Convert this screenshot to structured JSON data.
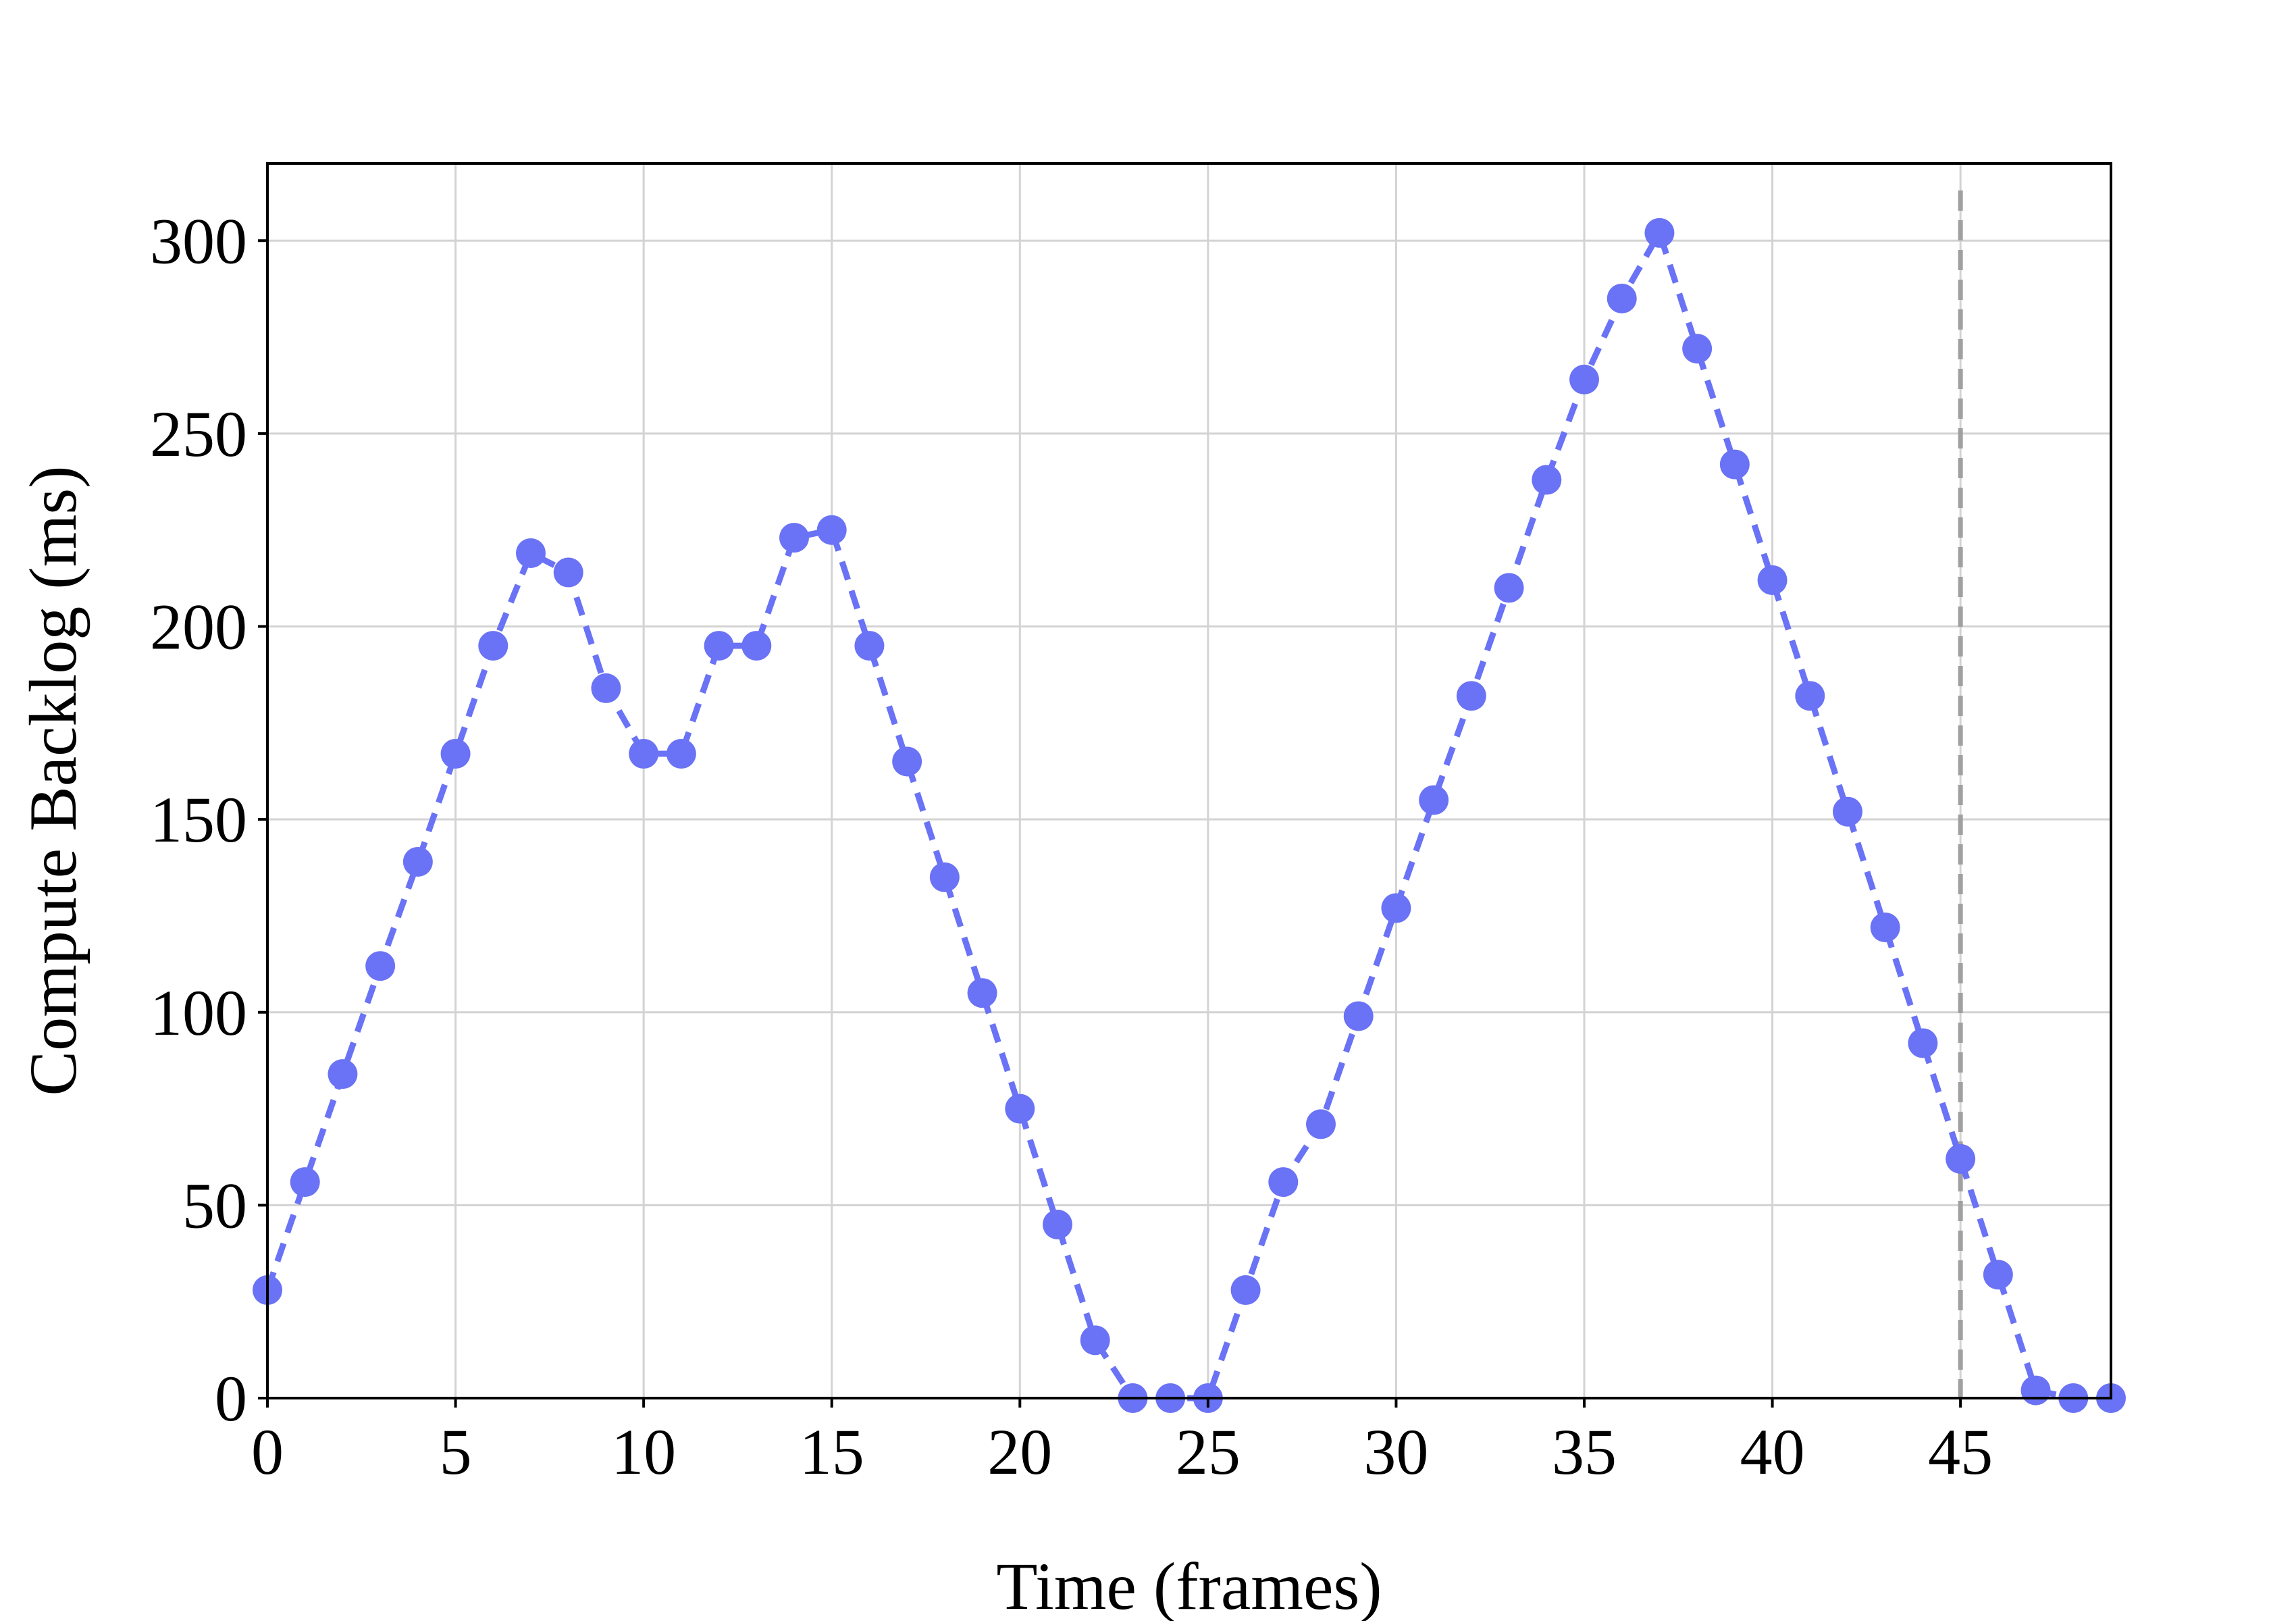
{
  "chart_data": {
    "type": "line",
    "title": "",
    "xlabel": "Time (frames)",
    "ylabel": "Compute Backlog (ms)",
    "xlim": [
      0,
      49
    ],
    "ylim": [
      0,
      320
    ],
    "xticks": [
      0,
      5,
      10,
      15,
      20,
      25,
      30,
      35,
      40,
      45
    ],
    "yticks": [
      0,
      50,
      100,
      150,
      200,
      250,
      300
    ],
    "grid": true,
    "line_style": "dashed",
    "marker": "circle",
    "series": [
      {
        "x": [
          0,
          1,
          2,
          3,
          4,
          5,
          6,
          7,
          8,
          9,
          10,
          11,
          12,
          13,
          14,
          15,
          16,
          17,
          18,
          19,
          20,
          21,
          22,
          23,
          24,
          25,
          26,
          27,
          28,
          29,
          30,
          31,
          32,
          33,
          34,
          35,
          36,
          37,
          38,
          39,
          40,
          41,
          42,
          43,
          44,
          45,
          46,
          47,
          48,
          49
        ],
        "values": [
          28,
          56,
          84,
          112,
          139,
          167,
          195,
          219,
          214,
          184,
          167,
          167,
          195,
          195,
          223,
          225,
          195,
          165,
          135,
          105,
          75,
          45,
          15,
          0,
          0,
          0,
          28,
          56,
          71,
          99,
          127,
          155,
          182,
          210,
          238,
          264,
          285,
          302,
          272,
          242,
          212,
          182,
          152,
          122,
          92,
          62,
          32,
          2,
          0,
          0
        ]
      }
    ],
    "vline": {
      "x": 45,
      "style": "dashed"
    },
    "colors": {
      "series": "#6a72f5",
      "vline": "#a0a0a0",
      "grid": "#d3d3d3",
      "axis": "#000000"
    }
  }
}
